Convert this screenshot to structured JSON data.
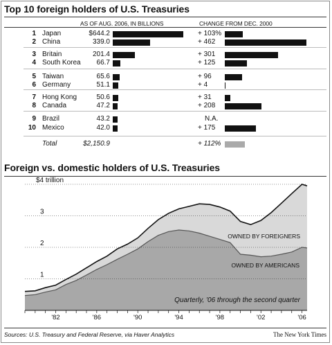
{
  "table": {
    "title": "Top 10 foreign holders of U.S. Treasuries",
    "col_amount_header": "AS OF AUG. 2006, IN BILLIONS",
    "col_change_header": "CHANGE FROM DEC. 2000",
    "rows": [
      {
        "rank": "1",
        "country": "Japan",
        "amount_label": "$644.2",
        "amount": 644.2,
        "change_label": "+ 103%",
        "change": 103
      },
      {
        "rank": "2",
        "country": "China",
        "amount_label": "339.0",
        "amount": 339.0,
        "change_label": "+ 462",
        "change": 462
      },
      {
        "rank": "3",
        "country": "Britain",
        "amount_label": "201.4",
        "amount": 201.4,
        "change_label": "+ 301",
        "change": 301
      },
      {
        "rank": "4",
        "country": "South Korea",
        "amount_label": "66.7",
        "amount": 66.7,
        "change_label": "+ 125",
        "change": 125
      },
      {
        "rank": "5",
        "country": "Taiwan",
        "amount_label": "65.6",
        "amount": 65.6,
        "change_label": "+ 96",
        "change": 96
      },
      {
        "rank": "6",
        "country": "Germany",
        "amount_label": "51.1",
        "amount": 51.1,
        "change_label": "+ 4",
        "change": 4
      },
      {
        "rank": "7",
        "country": "Hong Kong",
        "amount_label": "50.6",
        "amount": 50.6,
        "change_label": "+ 31",
        "change": 31
      },
      {
        "rank": "8",
        "country": "Canada",
        "amount_label": "47.2",
        "amount": 47.2,
        "change_label": "+ 208",
        "change": 208
      },
      {
        "rank": "9",
        "country": "Brazil",
        "amount_label": "43.2",
        "amount": 43.2,
        "change_label": "N.A.",
        "change": null
      },
      {
        "rank": "10",
        "country": "Mexico",
        "amount_label": "42.0",
        "amount": 42.0,
        "change_label": "+ 175",
        "change": 175
      }
    ],
    "total": {
      "label": "Total",
      "amount_label": "$2,150.9",
      "amount": 2150.9,
      "change_label": "+ 112%",
      "change": 112
    }
  },
  "chart_data": {
    "type": "area",
    "title": "Foreign vs. domestic holders of U.S. Treasuries",
    "y_unit_label": "$4 trillion",
    "y_ticks": [
      {
        "value": 1,
        "label": "1"
      },
      {
        "value": 2,
        "label": "2"
      },
      {
        "value": 3,
        "label": "3"
      },
      {
        "value": 4,
        "label": "$4 trillion"
      }
    ],
    "x_ticks": [
      "'82",
      "'86",
      "'90",
      "'94",
      "'98",
      "'02",
      "'06"
    ],
    "xlim": [
      1979,
      2006.5
    ],
    "ylim": [
      0,
      4.2
    ],
    "grid": true,
    "series_labels": {
      "foreigners": "OWNED BY FOREIGNERS",
      "americans": "OWNED BY AMERICANS"
    },
    "note": "Quarterly, '06 through the second quarter",
    "x": [
      1979,
      1980,
      1981,
      1982,
      1983,
      1984,
      1985,
      1986,
      1987,
      1988,
      1989,
      1990,
      1991,
      1992,
      1993,
      1994,
      1995,
      1996,
      1997,
      1998,
      1999,
      2000,
      2001,
      2002,
      2003,
      2004,
      2005,
      2006,
      2006.5
    ],
    "series": [
      {
        "name": "total",
        "values": [
          0.6,
          0.62,
          0.72,
          0.8,
          0.98,
          1.15,
          1.35,
          1.55,
          1.72,
          1.95,
          2.1,
          2.3,
          2.6,
          2.88,
          3.08,
          3.22,
          3.3,
          3.38,
          3.36,
          3.28,
          3.15,
          2.82,
          2.72,
          2.85,
          3.1,
          3.4,
          3.7,
          4.0,
          3.95
        ]
      },
      {
        "name": "americans",
        "values": [
          0.47,
          0.5,
          0.58,
          0.65,
          0.82,
          0.95,
          1.12,
          1.3,
          1.45,
          1.62,
          1.78,
          1.95,
          2.18,
          2.38,
          2.5,
          2.55,
          2.52,
          2.45,
          2.35,
          2.25,
          2.15,
          1.78,
          1.75,
          1.7,
          1.72,
          1.78,
          1.85,
          2.0,
          1.98
        ]
      }
    ]
  },
  "footer": {
    "sources": "Sources: U.S. Treasury and Federal Reserve, via Haver Analytics",
    "credit": "The New York Times"
  },
  "colors": {
    "foreign_area": "#d9d9d9",
    "domestic_area": "#a8a8a8",
    "bar": "#111111",
    "total_bar": "#aaaaaa"
  }
}
